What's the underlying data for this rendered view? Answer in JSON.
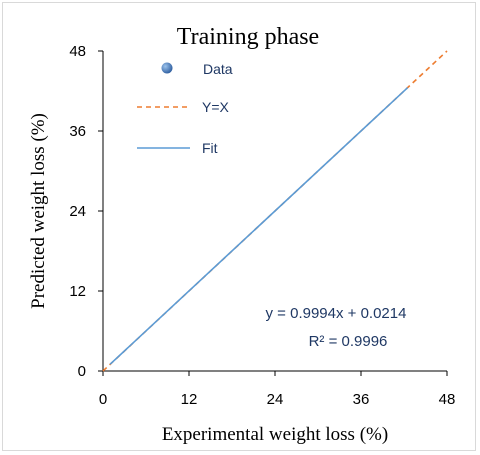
{
  "chart_data": {
    "type": "scatter",
    "title": "Training phase",
    "xlabel": "Experimental weight loss (%)",
    "ylabel": "Predicted weight loss (%)",
    "xlim": [
      0,
      48
    ],
    "ylim": [
      0,
      48
    ],
    "xticks": [
      "0",
      "12",
      "24",
      "36",
      "48"
    ],
    "yticks": [
      "0",
      "12",
      "24",
      "36",
      "48"
    ],
    "grid": false,
    "legend_position": "top-left",
    "legend": [
      {
        "label": "Data",
        "kind": "marker",
        "color": "#3a6fb0"
      },
      {
        "label": "Y=X",
        "kind": "dashed-line",
        "color": "#ed7d31"
      },
      {
        "label": "Fit",
        "kind": "solid-line",
        "color": "#5b9bd5"
      }
    ],
    "series": [
      {
        "name": "Y=X",
        "style": "dashed",
        "color": "#ed7d31",
        "x": [
          0,
          48
        ],
        "y": [
          0,
          48
        ]
      },
      {
        "name": "Fit",
        "style": "solid",
        "color": "#5b9bd5",
        "x": [
          1,
          42.5
        ],
        "y": [
          1.0208,
          42.4959
        ]
      }
    ],
    "annotations": {
      "equation": "y = 0.9994x + 0.0214",
      "r_squared": "R² = 0.9996"
    }
  }
}
